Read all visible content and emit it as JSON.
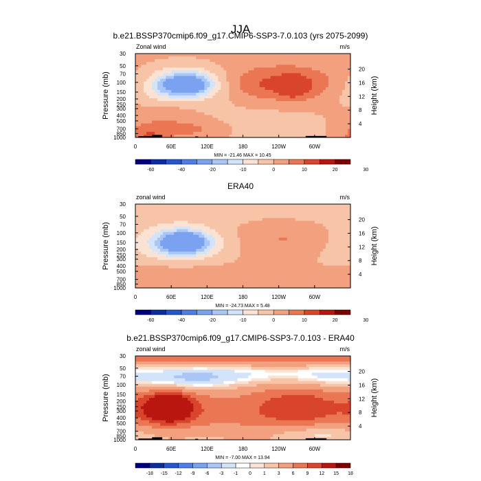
{
  "title": "JJA",
  "colors": {
    "wind": [
      "#00007f",
      "#0a2ea0",
      "#2457cd",
      "#4d7ee6",
      "#7aa2f0",
      "#a9c6f7",
      "#d3e4fa",
      "#fbe3d3",
      "#f8c4a8",
      "#f2a07e",
      "#ea7654",
      "#d9452c",
      "#b8170f",
      "#7f0000"
    ],
    "diff": [
      "#00007f",
      "#0a2ea0",
      "#2457cd",
      "#4d7ee6",
      "#7aa2f0",
      "#a9c6f7",
      "#d3e4fa",
      "#ffffff",
      "#fbe3d3",
      "#f8c4a8",
      "#f2a07e",
      "#ea7654",
      "#d9452c",
      "#b8170f",
      "#7f0000"
    ],
    "topo": "#000000"
  },
  "chart_data": [
    {
      "type": "heatmap",
      "title": "b.e21.BSSP370cmip6.f09_g17.CMIP6-SSP3-7.0.103 (yrs 2075-2099)",
      "left_label": "Zonal wind",
      "right_label": "m/s",
      "ylabel": "Pressure (mb)",
      "y2label": "Height (km)",
      "x_ticks": [
        "0",
        "60E",
        "120E",
        "180",
        "120W",
        "60W"
      ],
      "x_tick_values": [
        0,
        60,
        120,
        180,
        240,
        300
      ],
      "xlim": [
        0,
        360
      ],
      "y_ticks": [
        "30",
        "50",
        "70",
        "100",
        "150",
        "200",
        "250",
        "300",
        "400",
        "500",
        "700",
        "850",
        "1000"
      ],
      "y_tick_values": [
        30,
        50,
        70,
        100,
        150,
        200,
        250,
        300,
        400,
        500,
        700,
        850,
        1000
      ],
      "ylim": [
        30,
        1000
      ],
      "y2_ticks": [
        "20",
        "16",
        "12",
        "8",
        "4"
      ],
      "y2_tick_values": [
        20,
        16,
        12,
        8,
        4
      ],
      "stats": "MIN = -21.46  MAX =  10.45",
      "min": -21.46,
      "max": 10.45,
      "colorbar_labels": [
        "-60",
        "-40",
        "-20",
        "-10",
        "0",
        "10",
        "20",
        "30"
      ],
      "levels": [
        -70,
        -60,
        -50,
        -40,
        -30,
        -20,
        -15,
        -10,
        -5,
        0,
        5,
        10,
        15,
        20,
        25,
        30
      ],
      "background": 2,
      "blobs": [
        {
          "lon": 85,
          "p": 110,
          "rx": 28,
          "rp": 0.3,
          "v": -21
        },
        {
          "lon": 85,
          "p": 105,
          "rx": 45,
          "rp": 0.5,
          "v": -12
        },
        {
          "lon": 75,
          "p": 120,
          "rx": 70,
          "rp": 0.7,
          "v": -6
        },
        {
          "lon": 40,
          "p": 160,
          "rx": 20,
          "rp": 0.4,
          "v": -4
        },
        {
          "lon": 245,
          "p": 110,
          "rx": 70,
          "rp": 0.45,
          "v": 8
        },
        {
          "lon": 225,
          "p": 120,
          "rx": 100,
          "rp": 0.7,
          "v": 4
        },
        {
          "lon": 265,
          "p": 120,
          "rx": 15,
          "rp": 0.3,
          "v": 10
        },
        {
          "lon": 40,
          "p": 300,
          "rx": 50,
          "rp": 0.8,
          "v": 4
        },
        {
          "lon": 90,
          "p": 700,
          "rx": 40,
          "rp": 0.25,
          "v": 5
        },
        {
          "lon": 20,
          "p": 950,
          "rx": 22,
          "rp": 0.3,
          "v": 8
        },
        {
          "lon": 230,
          "p": 500,
          "rx": 110,
          "rp": 1.1,
          "v": -4
        },
        {
          "lon": 350,
          "p": 170,
          "rx": 25,
          "rp": 0.5,
          "v": -3
        }
      ],
      "topo": [
        {
          "lon0": 5,
          "lon1": 35,
          "p": 950
        },
        {
          "lon0": 28,
          "lon1": 45,
          "p": 900
        },
        {
          "lon0": 100,
          "lon1": 105,
          "p": 960
        },
        {
          "lon0": 285,
          "lon1": 320,
          "p": 940
        }
      ]
    },
    {
      "type": "heatmap",
      "title": "ERA40",
      "left_label": "zonal wind",
      "right_label": "m/s",
      "ylabel": "Pressure (mb)",
      "y2label": "Height (km)",
      "x_ticks": [
        "0",
        "60E",
        "120E",
        "180",
        "120W",
        "60W"
      ],
      "x_tick_values": [
        0,
        60,
        120,
        180,
        240,
        300
      ],
      "xlim": [
        0,
        360
      ],
      "y_ticks": [
        "30",
        "50",
        "70",
        "100",
        "150",
        "200",
        "250",
        "300",
        "400",
        "500",
        "700",
        "850",
        "1000"
      ],
      "y_tick_values": [
        30,
        50,
        70,
        100,
        150,
        200,
        250,
        300,
        400,
        500,
        700,
        850,
        1000
      ],
      "ylim": [
        30,
        1000
      ],
      "y2_ticks": [
        "20",
        "16",
        "12",
        "8",
        "4"
      ],
      "y2_tick_values": [
        20,
        16,
        12,
        8,
        4
      ],
      "stats": "MIN = -24.73  MAX =  5.48",
      "min": -24.73,
      "max": 5.48,
      "colorbar_labels": [
        "-60",
        "-40",
        "-20",
        "-10",
        "0",
        "10",
        "20",
        "30"
      ],
      "levels": [
        -70,
        -60,
        -50,
        -40,
        -30,
        -20,
        -15,
        -10,
        -5,
        0,
        5,
        10,
        15,
        20,
        25,
        30
      ],
      "background": 2,
      "blobs": [
        {
          "lon": 80,
          "p": 150,
          "rx": 25,
          "rp": 0.3,
          "v": -24
        },
        {
          "lon": 80,
          "p": 150,
          "rx": 45,
          "rp": 0.45,
          "v": -12
        },
        {
          "lon": 70,
          "p": 160,
          "rx": 75,
          "rp": 0.75,
          "v": -6
        },
        {
          "lon": 180,
          "p": 40,
          "rx": 400,
          "rp": 0.45,
          "v": -3
        },
        {
          "lon": 250,
          "p": 130,
          "rx": 60,
          "rp": 0.5,
          "v": 5
        },
        {
          "lon": 300,
          "p": 200,
          "rx": 80,
          "rp": 1.0,
          "v": -2
        },
        {
          "lon": 60,
          "p": 600,
          "rx": 60,
          "rp": 0.4,
          "v": 3
        }
      ],
      "topo": []
    },
    {
      "type": "heatmap",
      "title": "b.e21.BSSP370cmip6.f09_g17.CMIP6-SSP3-7.0.103 - ERA40",
      "left_label": "zonal wind",
      "right_label": "m/s",
      "ylabel": "Pressure (mb)",
      "y2label": "Height (km)",
      "x_ticks": [
        "0",
        "60E",
        "120E",
        "180",
        "120W",
        "60W"
      ],
      "x_tick_values": [
        0,
        60,
        120,
        180,
        240,
        300
      ],
      "xlim": [
        0,
        360
      ],
      "y_ticks": [
        "30",
        "50",
        "70",
        "100",
        "150",
        "200",
        "250",
        "300",
        "400",
        "500",
        "700",
        "850",
        "1000"
      ],
      "y_tick_values": [
        30,
        50,
        70,
        100,
        150,
        200,
        250,
        300,
        400,
        500,
        700,
        850,
        1000
      ],
      "ylim": [
        30,
        1000
      ],
      "y2_ticks": [
        "20",
        "16",
        "12",
        "8",
        "4"
      ],
      "y2_tick_values": [
        20,
        16,
        12,
        8,
        4
      ],
      "stats": "MIN = -7.00  MAX =  13.94",
      "min": -7.0,
      "max": 13.94,
      "colorbar_labels": [
        "-18",
        "-15",
        "-12",
        "-9",
        "-6",
        "-3",
        "-1",
        "0",
        "1",
        "3",
        "6",
        "9",
        "12",
        "15",
        "18"
      ],
      "levels": [
        -21,
        -18,
        -15,
        -12,
        -9,
        -6,
        -3,
        -1,
        0,
        1,
        3,
        6,
        9,
        12,
        15,
        18,
        21
      ],
      "background": 2,
      "blobs": [
        {
          "lon": 180,
          "p": 32,
          "rx": 500,
          "rp": 0.25,
          "v": 6
        },
        {
          "lon": 90,
          "p": 80,
          "rx": 60,
          "rp": 0.35,
          "v": -6
        },
        {
          "lon": 200,
          "p": 65,
          "rx": 90,
          "rp": 0.3,
          "v": -3
        },
        {
          "lon": 330,
          "p": 70,
          "rx": 50,
          "rp": 0.3,
          "v": -3
        },
        {
          "lon": 55,
          "p": 260,
          "rx": 22,
          "rp": 0.35,
          "v": 13
        },
        {
          "lon": 55,
          "p": 260,
          "rx": 40,
          "rp": 0.6,
          "v": 7
        },
        {
          "lon": 280,
          "p": 250,
          "rx": 55,
          "rp": 0.6,
          "v": 7
        },
        {
          "lon": 140,
          "p": 280,
          "rx": 110,
          "rp": 0.9,
          "v": 3
        },
        {
          "lon": 230,
          "p": 500,
          "rx": 150,
          "rp": 1.0,
          "v": 2
        },
        {
          "lon": 300,
          "p": 780,
          "rx": 60,
          "rp": 0.3,
          "v": -4
        },
        {
          "lon": 120,
          "p": 800,
          "rx": 60,
          "rp": 0.3,
          "v": -2
        }
      ],
      "topo": [
        {
          "lon0": 5,
          "lon1": 35,
          "p": 950
        },
        {
          "lon0": 28,
          "lon1": 45,
          "p": 900
        },
        {
          "lon0": 100,
          "lon1": 105,
          "p": 960
        },
        {
          "lon0": 285,
          "lon1": 320,
          "p": 940
        }
      ]
    }
  ]
}
